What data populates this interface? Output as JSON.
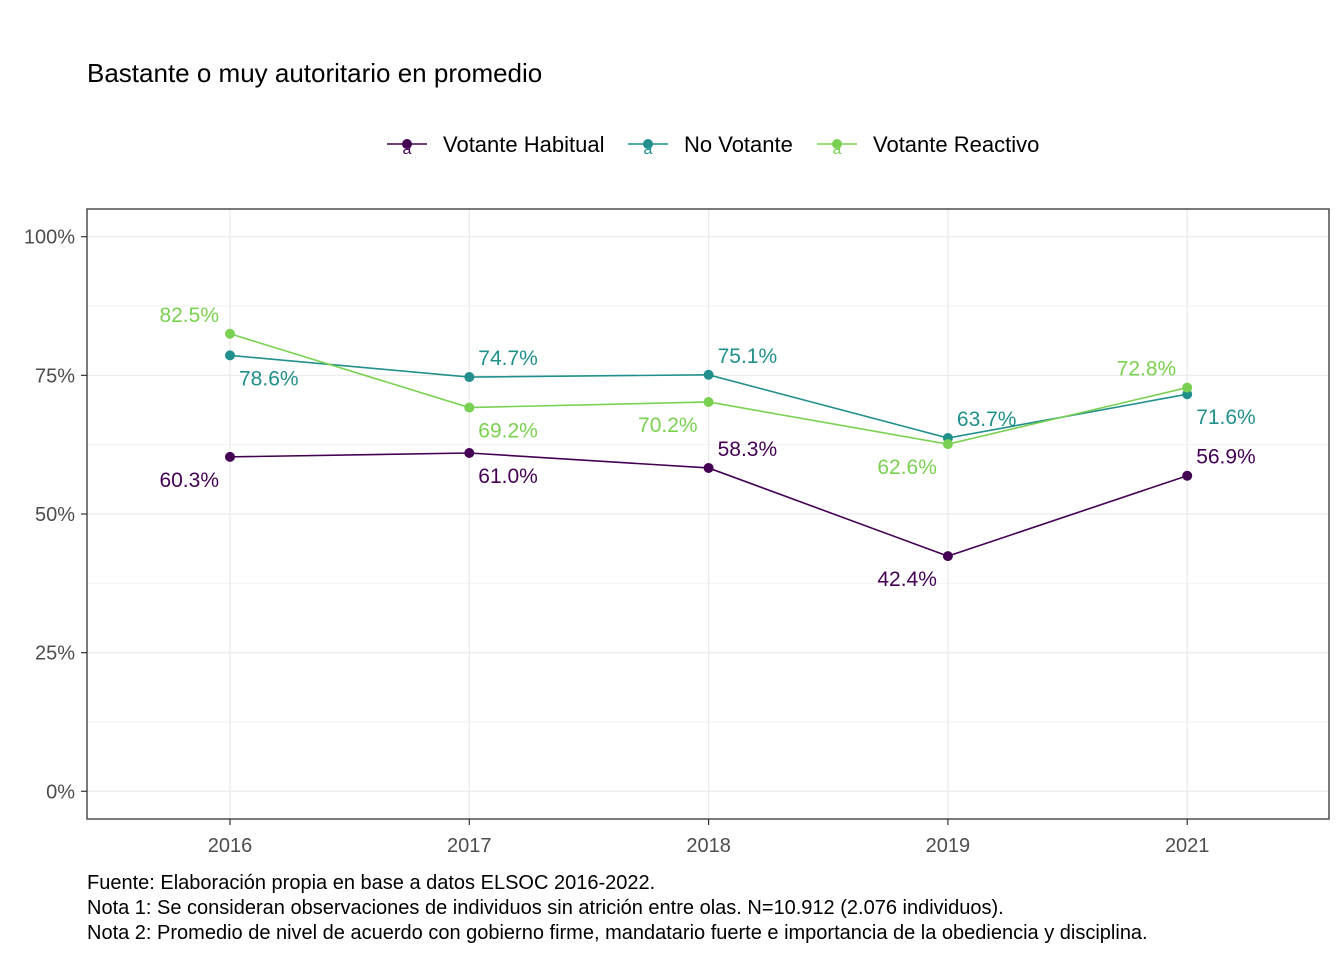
{
  "title": "Bastante o muy autoritario en promedio",
  "caption": [
    "Fuente: Elaboración propia en base a datos ELSOC 2016-2022.",
    "Nota 1: Se consideran observaciones de individuos sin atrición entre olas. N=10.912 (2.076 individuos).",
    "Nota 2: Promedio de nivel de acuerdo con gobierno firme, mandatario fuerte e importancia de la obediencia y disciplina."
  ],
  "legend_key_glyph": "a",
  "chart_data": {
    "type": "line",
    "categories": [
      "2016",
      "2017",
      "2018",
      "2019",
      "2021"
    ],
    "y_ticks": [
      "0%",
      "25%",
      "50%",
      "75%",
      "100%"
    ],
    "ylim": [
      -0.05,
      1.05
    ],
    "grid": true,
    "legend_position": "top",
    "series": [
      {
        "name": "Votante Habitual",
        "color": "#440154",
        "values": [
          0.603,
          0.61,
          0.583,
          0.424,
          0.569
        ],
        "labels": [
          "60.3%",
          "61.0%",
          "58.3%",
          "42.4%",
          "56.9%"
        ],
        "label_side": [
          "below-left",
          "below-right",
          "above-right",
          "below-left",
          "above-right"
        ]
      },
      {
        "name": "No Votante",
        "color": "#21908C",
        "values": [
          0.786,
          0.747,
          0.751,
          0.637,
          0.716
        ],
        "labels": [
          "78.6%",
          "74.7%",
          "75.1%",
          "63.7%",
          "71.6%"
        ],
        "label_side": [
          "below-right",
          "above-right",
          "above-right",
          "above-right",
          "below-right"
        ]
      },
      {
        "name": "Votante Reactivo",
        "color": "#7AD151",
        "values": [
          0.825,
          0.692,
          0.702,
          0.626,
          0.728
        ],
        "labels": [
          "82.5%",
          "69.2%",
          "70.2%",
          "62.6%",
          "72.8%"
        ],
        "label_side": [
          "above-left",
          "below-right",
          "below-left",
          "below-left",
          "above-left"
        ]
      }
    ]
  }
}
